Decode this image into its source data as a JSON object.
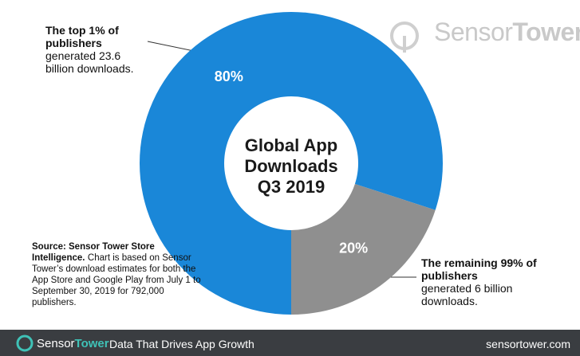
{
  "chart_data": {
    "type": "pie",
    "donut": true,
    "title": "Global App Downloads Q3 2019",
    "values": [
      80,
      20
    ],
    "value_labels": [
      "80%",
      "20%"
    ],
    "colors": [
      "#1a87d8",
      "#8f8f8f"
    ],
    "annotations": [
      {
        "bold": "The top 1% of publishers",
        "text": "generated 23.6 billion downloads."
      },
      {
        "bold": "The remaining 99% of publishers",
        "text": "generated 6 billion downloads."
      }
    ],
    "source": {
      "bold": "Source: Sensor Tower Store Intelligence.",
      "text": "Chart is based on Sensor Tower’s download estimates for both the App Store and Google Play from July 1 to September 30, 2019 for 792,000 publishers."
    }
  },
  "branding": {
    "logo_1": "Sensor",
    "logo_2": "Tower",
    "tagline": "Data That Drives App Growth",
    "url": "sensortower.com"
  }
}
